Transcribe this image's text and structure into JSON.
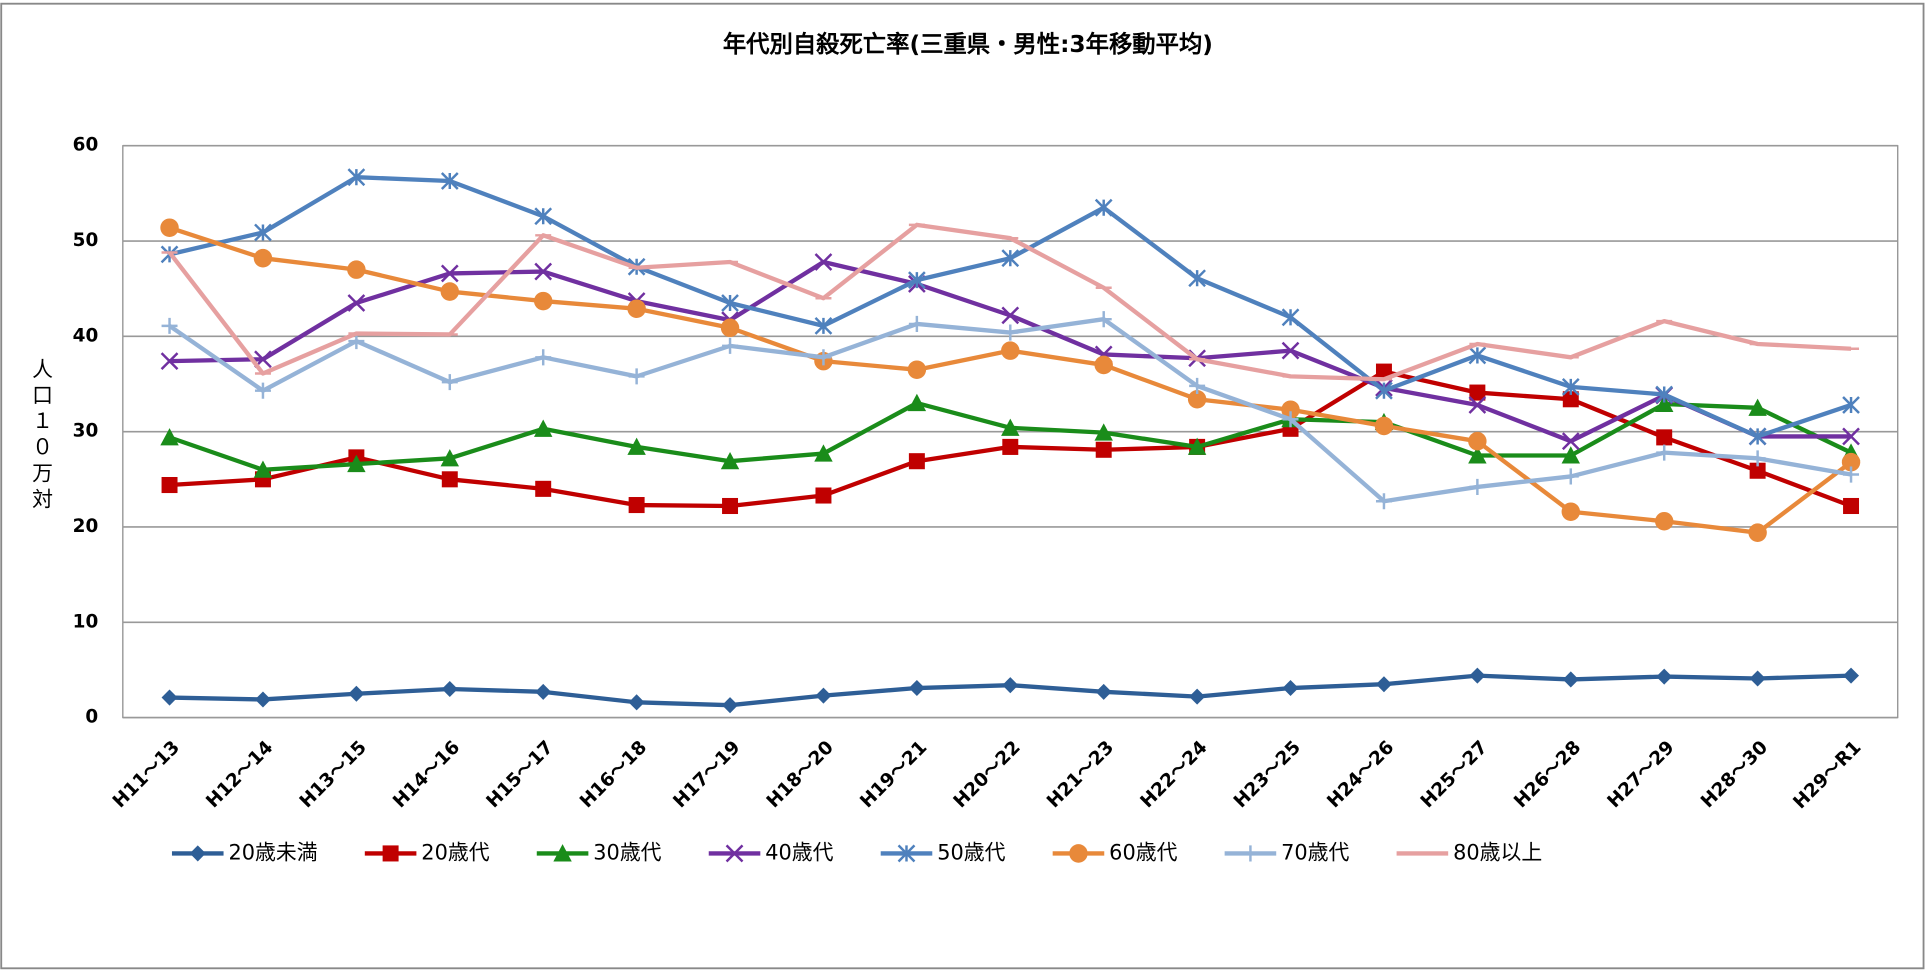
{
  "chart_data": {
    "type": "line",
    "title": "年代別自殺死亡率(三重県・男性:3年移動平均)",
    "y_label": "人口１０万対",
    "categories": [
      "H11～13",
      "H12～14",
      "H13～15",
      "H14～16",
      "H15～17",
      "H16～18",
      "H17～19",
      "H18～20",
      "H19～21",
      "H20～22",
      "H21～23",
      "H22～24",
      "H23～25",
      "H24～26",
      "H25～27",
      "H26～28",
      "H27～29",
      "H28～30",
      "H29～R1"
    ],
    "ylim": [
      0,
      60
    ],
    "yticks": [
      0,
      10,
      20,
      30,
      40,
      50,
      60
    ],
    "grid": true,
    "legend": "bottom",
    "series": [
      {
        "name": "20歳未満",
        "color": "#2E5E96",
        "marker": "diamond",
        "values": [
          2.1,
          1.9,
          2.5,
          3.0,
          2.7,
          1.6,
          1.3,
          2.3,
          3.1,
          3.4,
          2.7,
          2.2,
          3.1,
          3.5,
          4.4,
          4.0,
          4.3,
          4.1,
          4.4
        ]
      },
      {
        "name": "20歳代",
        "color": "#C00000",
        "marker": "square",
        "values": [
          24.4,
          25.0,
          27.3,
          25.0,
          24.0,
          22.3,
          22.2,
          23.3,
          26.9,
          28.4,
          28.1,
          28.4,
          30.3,
          36.3,
          34.1,
          33.4,
          29.4,
          25.9,
          22.2
        ]
      },
      {
        "name": "30歳代",
        "color": "#1A8C1A",
        "marker": "triangle",
        "values": [
          29.4,
          26.0,
          26.6,
          27.2,
          30.3,
          28.4,
          26.9,
          27.7,
          33.0,
          30.4,
          29.9,
          28.4,
          31.3,
          31.0,
          27.5,
          27.5,
          32.9,
          32.5,
          27.8
        ]
      },
      {
        "name": "40歳代",
        "color": "#7030A0",
        "marker": "x",
        "values": [
          37.4,
          37.6,
          43.5,
          46.6,
          46.8,
          43.7,
          41.7,
          47.8,
          45.5,
          42.2,
          38.1,
          37.7,
          38.5,
          34.6,
          32.8,
          29.0,
          33.8,
          29.5,
          29.5
        ]
      },
      {
        "name": "50歳代",
        "color": "#4F81BD",
        "marker": "star",
        "values": [
          48.6,
          50.9,
          56.7,
          56.3,
          52.6,
          47.3,
          43.5,
          41.1,
          45.9,
          48.2,
          53.5,
          46.1,
          42.0,
          34.3,
          38.0,
          34.7,
          33.9,
          29.5,
          32.8
        ]
      },
      {
        "name": "60歳代",
        "color": "#E8893A",
        "marker": "circle",
        "values": [
          51.4,
          48.2,
          47.0,
          44.7,
          43.7,
          42.9,
          40.9,
          37.4,
          36.5,
          38.5,
          37.0,
          33.4,
          32.3,
          30.6,
          29.0,
          21.6,
          20.6,
          19.4,
          26.8
        ]
      },
      {
        "name": "70歳代",
        "color": "#95B3D7",
        "marker": "plus",
        "values": [
          41.1,
          34.3,
          39.5,
          35.2,
          37.8,
          35.8,
          39.0,
          37.8,
          41.3,
          40.4,
          41.8,
          34.8,
          31.3,
          22.7,
          24.2,
          25.3,
          27.8,
          27.2,
          25.5
        ]
      },
      {
        "name": "80歳以上",
        "color": "#E6A0A0",
        "marker": "dash",
        "values": [
          48.8,
          36.1,
          40.3,
          40.2,
          50.6,
          47.2,
          47.8,
          44.0,
          51.7,
          50.3,
          45.1,
          37.6,
          35.8,
          35.5,
          39.2,
          37.8,
          41.6,
          39.2,
          38.7
        ]
      }
    ]
  }
}
